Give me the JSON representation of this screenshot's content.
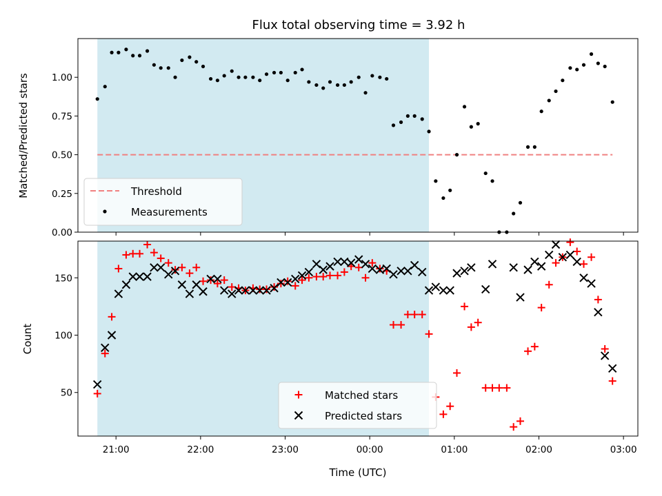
{
  "chart_data": [
    {
      "type": "scatter",
      "title": "Flux total observing time = 3.92 h",
      "xlabel": "",
      "ylabel": "Matched/Predicted stars",
      "x_unit": "hours (UTC, continuing past midnight)",
      "xlim": [
        20.55,
        27.17
      ],
      "ylim": [
        0.0,
        1.25
      ],
      "yticks": [
        0.0,
        0.25,
        0.5,
        0.75,
        1.0
      ],
      "ytick_labels": [
        "0.00",
        "0.25",
        "0.50",
        "0.75",
        "1.00"
      ],
      "xticks": [
        21,
        22,
        23,
        24,
        25,
        26,
        27
      ],
      "grid": false,
      "shaded_region": {
        "x_start": 20.78,
        "x_end": 24.7,
        "color": "#add8e6"
      },
      "legend": {
        "location": "lower-left",
        "entries": [
          {
            "label": "Threshold",
            "color": "#f08080",
            "style": "dashed-line"
          },
          {
            "label": "Measurements",
            "color": "#000000",
            "style": "dot"
          }
        ]
      },
      "series": [
        {
          "name": "Threshold",
          "style": "dashed-line",
          "color": "#f08080",
          "x": [
            20.78,
            26.87
          ],
          "y": [
            0.5,
            0.5
          ]
        },
        {
          "name": "Measurements",
          "style": "dot",
          "color": "#000000",
          "x": [
            20.78,
            20.87,
            20.95,
            21.03,
            21.12,
            21.2,
            21.28,
            21.37,
            21.45,
            21.53,
            21.62,
            21.7,
            21.78,
            21.87,
            21.95,
            22.03,
            22.12,
            22.2,
            22.28,
            22.37,
            22.45,
            22.53,
            22.62,
            22.7,
            22.78,
            22.87,
            22.95,
            23.03,
            23.12,
            23.2,
            23.28,
            23.37,
            23.45,
            23.53,
            23.62,
            23.7,
            23.78,
            23.87,
            23.95,
            24.03,
            24.12,
            24.2,
            24.28,
            24.37,
            24.45,
            24.53,
            24.62,
            24.7,
            24.78,
            24.87,
            24.95,
            25.03,
            25.12,
            25.2,
            25.28,
            25.37,
            25.45,
            25.53,
            25.62,
            25.7,
            25.78,
            25.87,
            25.95,
            26.03,
            26.12,
            26.2,
            26.28,
            26.37,
            26.45,
            26.53,
            26.62,
            26.7,
            26.78,
            26.87
          ],
          "y": [
            0.86,
            0.94,
            1.16,
            1.16,
            1.18,
            1.14,
            1.14,
            1.17,
            1.08,
            1.06,
            1.06,
            1.0,
            1.11,
            1.13,
            1.1,
            1.07,
            0.99,
            0.98,
            1.01,
            1.04,
            1.0,
            1.0,
            1.0,
            0.98,
            1.02,
            1.03,
            1.03,
            0.98,
            1.03,
            1.05,
            0.97,
            0.95,
            0.93,
            0.97,
            0.95,
            0.95,
            0.97,
            1.0,
            0.9,
            1.01,
            1.0,
            0.99,
            0.69,
            0.71,
            0.75,
            0.75,
            0.73,
            0.65,
            0.33,
            0.22,
            0.27,
            0.5,
            0.81,
            0.68,
            0.7,
            0.38,
            0.33,
            0.0,
            0.0,
            0.12,
            0.19,
            0.55,
            0.55,
            0.78,
            0.85,
            0.91,
            0.98,
            1.06,
            1.05,
            1.08,
            1.15,
            1.09,
            1.07,
            0.84
          ]
        }
      ]
    },
    {
      "type": "scatter",
      "title": "",
      "xlabel": "Time (UTC)",
      "ylabel": "Count",
      "xlim": [
        20.55,
        27.17
      ],
      "ylim": [
        12,
        182
      ],
      "yticks": [
        50,
        100,
        150
      ],
      "ytick_labels": [
        "50",
        "100",
        "150"
      ],
      "xticks": [
        21,
        22,
        23,
        24,
        25,
        26,
        27
      ],
      "xtick_labels": [
        "21:00",
        "22:00",
        "23:00",
        "00:00",
        "01:00",
        "02:00",
        "03:00"
      ],
      "grid": false,
      "shaded_region": {
        "x_start": 20.78,
        "x_end": 24.7,
        "color": "#add8e6"
      },
      "legend": {
        "location": "lower-center",
        "entries": [
          {
            "label": "Matched stars",
            "color": "#ff0000",
            "marker": "plus"
          },
          {
            "label": "Predicted stars",
            "color": "#000000",
            "marker": "x"
          }
        ]
      },
      "series": [
        {
          "name": "Matched stars",
          "marker": "plus",
          "color": "#ff0000",
          "x": [
            20.78,
            20.87,
            20.95,
            21.03,
            21.12,
            21.2,
            21.28,
            21.37,
            21.45,
            21.53,
            21.62,
            21.7,
            21.78,
            21.87,
            21.95,
            22.03,
            22.12,
            22.2,
            22.28,
            22.37,
            22.45,
            22.53,
            22.62,
            22.7,
            22.78,
            22.87,
            22.95,
            23.03,
            23.12,
            23.2,
            23.28,
            23.37,
            23.45,
            23.53,
            23.62,
            23.7,
            23.78,
            23.87,
            23.95,
            24.03,
            24.12,
            24.2,
            24.28,
            24.37,
            24.45,
            24.53,
            24.62,
            24.7,
            24.78,
            24.87,
            24.95,
            25.03,
            25.12,
            25.2,
            25.28,
            25.37,
            25.45,
            25.53,
            25.62,
            25.7,
            25.78,
            25.87,
            25.95,
            26.03,
            26.12,
            26.2,
            26.28,
            26.37,
            26.45,
            26.53,
            26.62,
            26.7,
            26.78,
            26.87
          ],
          "y": [
            49,
            84,
            116,
            158,
            170,
            171,
            171,
            179,
            172,
            167,
            163,
            157,
            159,
            154,
            159,
            147,
            148,
            145,
            148,
            142,
            141,
            139,
            141,
            140,
            140,
            142,
            145,
            147,
            143,
            148,
            150,
            151,
            151,
            152,
            152,
            155,
            160,
            159,
            150,
            163,
            158,
            156,
            109,
            109,
            118,
            118,
            118,
            101,
            46,
            31,
            38,
            67,
            125,
            107,
            111,
            54,
            54,
            54,
            54,
            20,
            25,
            86,
            90,
            124,
            144,
            163,
            168,
            181,
            173,
            162,
            168,
            131,
            88,
            60
          ]
        },
        {
          "name": "Predicted stars",
          "marker": "x",
          "color": "#000000",
          "x": [
            20.78,
            20.87,
            20.95,
            21.03,
            21.12,
            21.2,
            21.28,
            21.37,
            21.45,
            21.53,
            21.62,
            21.7,
            21.78,
            21.87,
            21.95,
            22.03,
            22.12,
            22.2,
            22.28,
            22.37,
            22.45,
            22.53,
            22.62,
            22.7,
            22.78,
            22.87,
            22.95,
            23.03,
            23.12,
            23.2,
            23.28,
            23.37,
            23.45,
            23.53,
            23.62,
            23.7,
            23.78,
            23.87,
            23.95,
            24.03,
            24.12,
            24.2,
            24.28,
            24.37,
            24.45,
            24.53,
            24.62,
            24.7,
            24.78,
            24.87,
            24.95,
            25.03,
            25.12,
            25.2,
            25.37,
            25.45,
            25.7,
            25.78,
            25.87,
            25.95,
            26.03,
            26.12,
            26.2,
            26.28,
            26.37,
            26.45,
            26.53,
            26.62,
            26.7,
            26.78,
            26.87
          ],
          "y": [
            57,
            89,
            100,
            136,
            144,
            151,
            151,
            151,
            159,
            159,
            153,
            156,
            144,
            136,
            144,
            138,
            149,
            149,
            139,
            136,
            139,
            139,
            139,
            139,
            139,
            141,
            146,
            146,
            149,
            152,
            155,
            162,
            157,
            160,
            164,
            164,
            163,
            166,
            162,
            158,
            157,
            158,
            153,
            156,
            156,
            161,
            155,
            139,
            142,
            139,
            139,
            154,
            156,
            159,
            140,
            162,
            159,
            133,
            157,
            164,
            160,
            170,
            179,
            168,
            170,
            164,
            150,
            145,
            120,
            82,
            71
          ]
        }
      ]
    }
  ]
}
